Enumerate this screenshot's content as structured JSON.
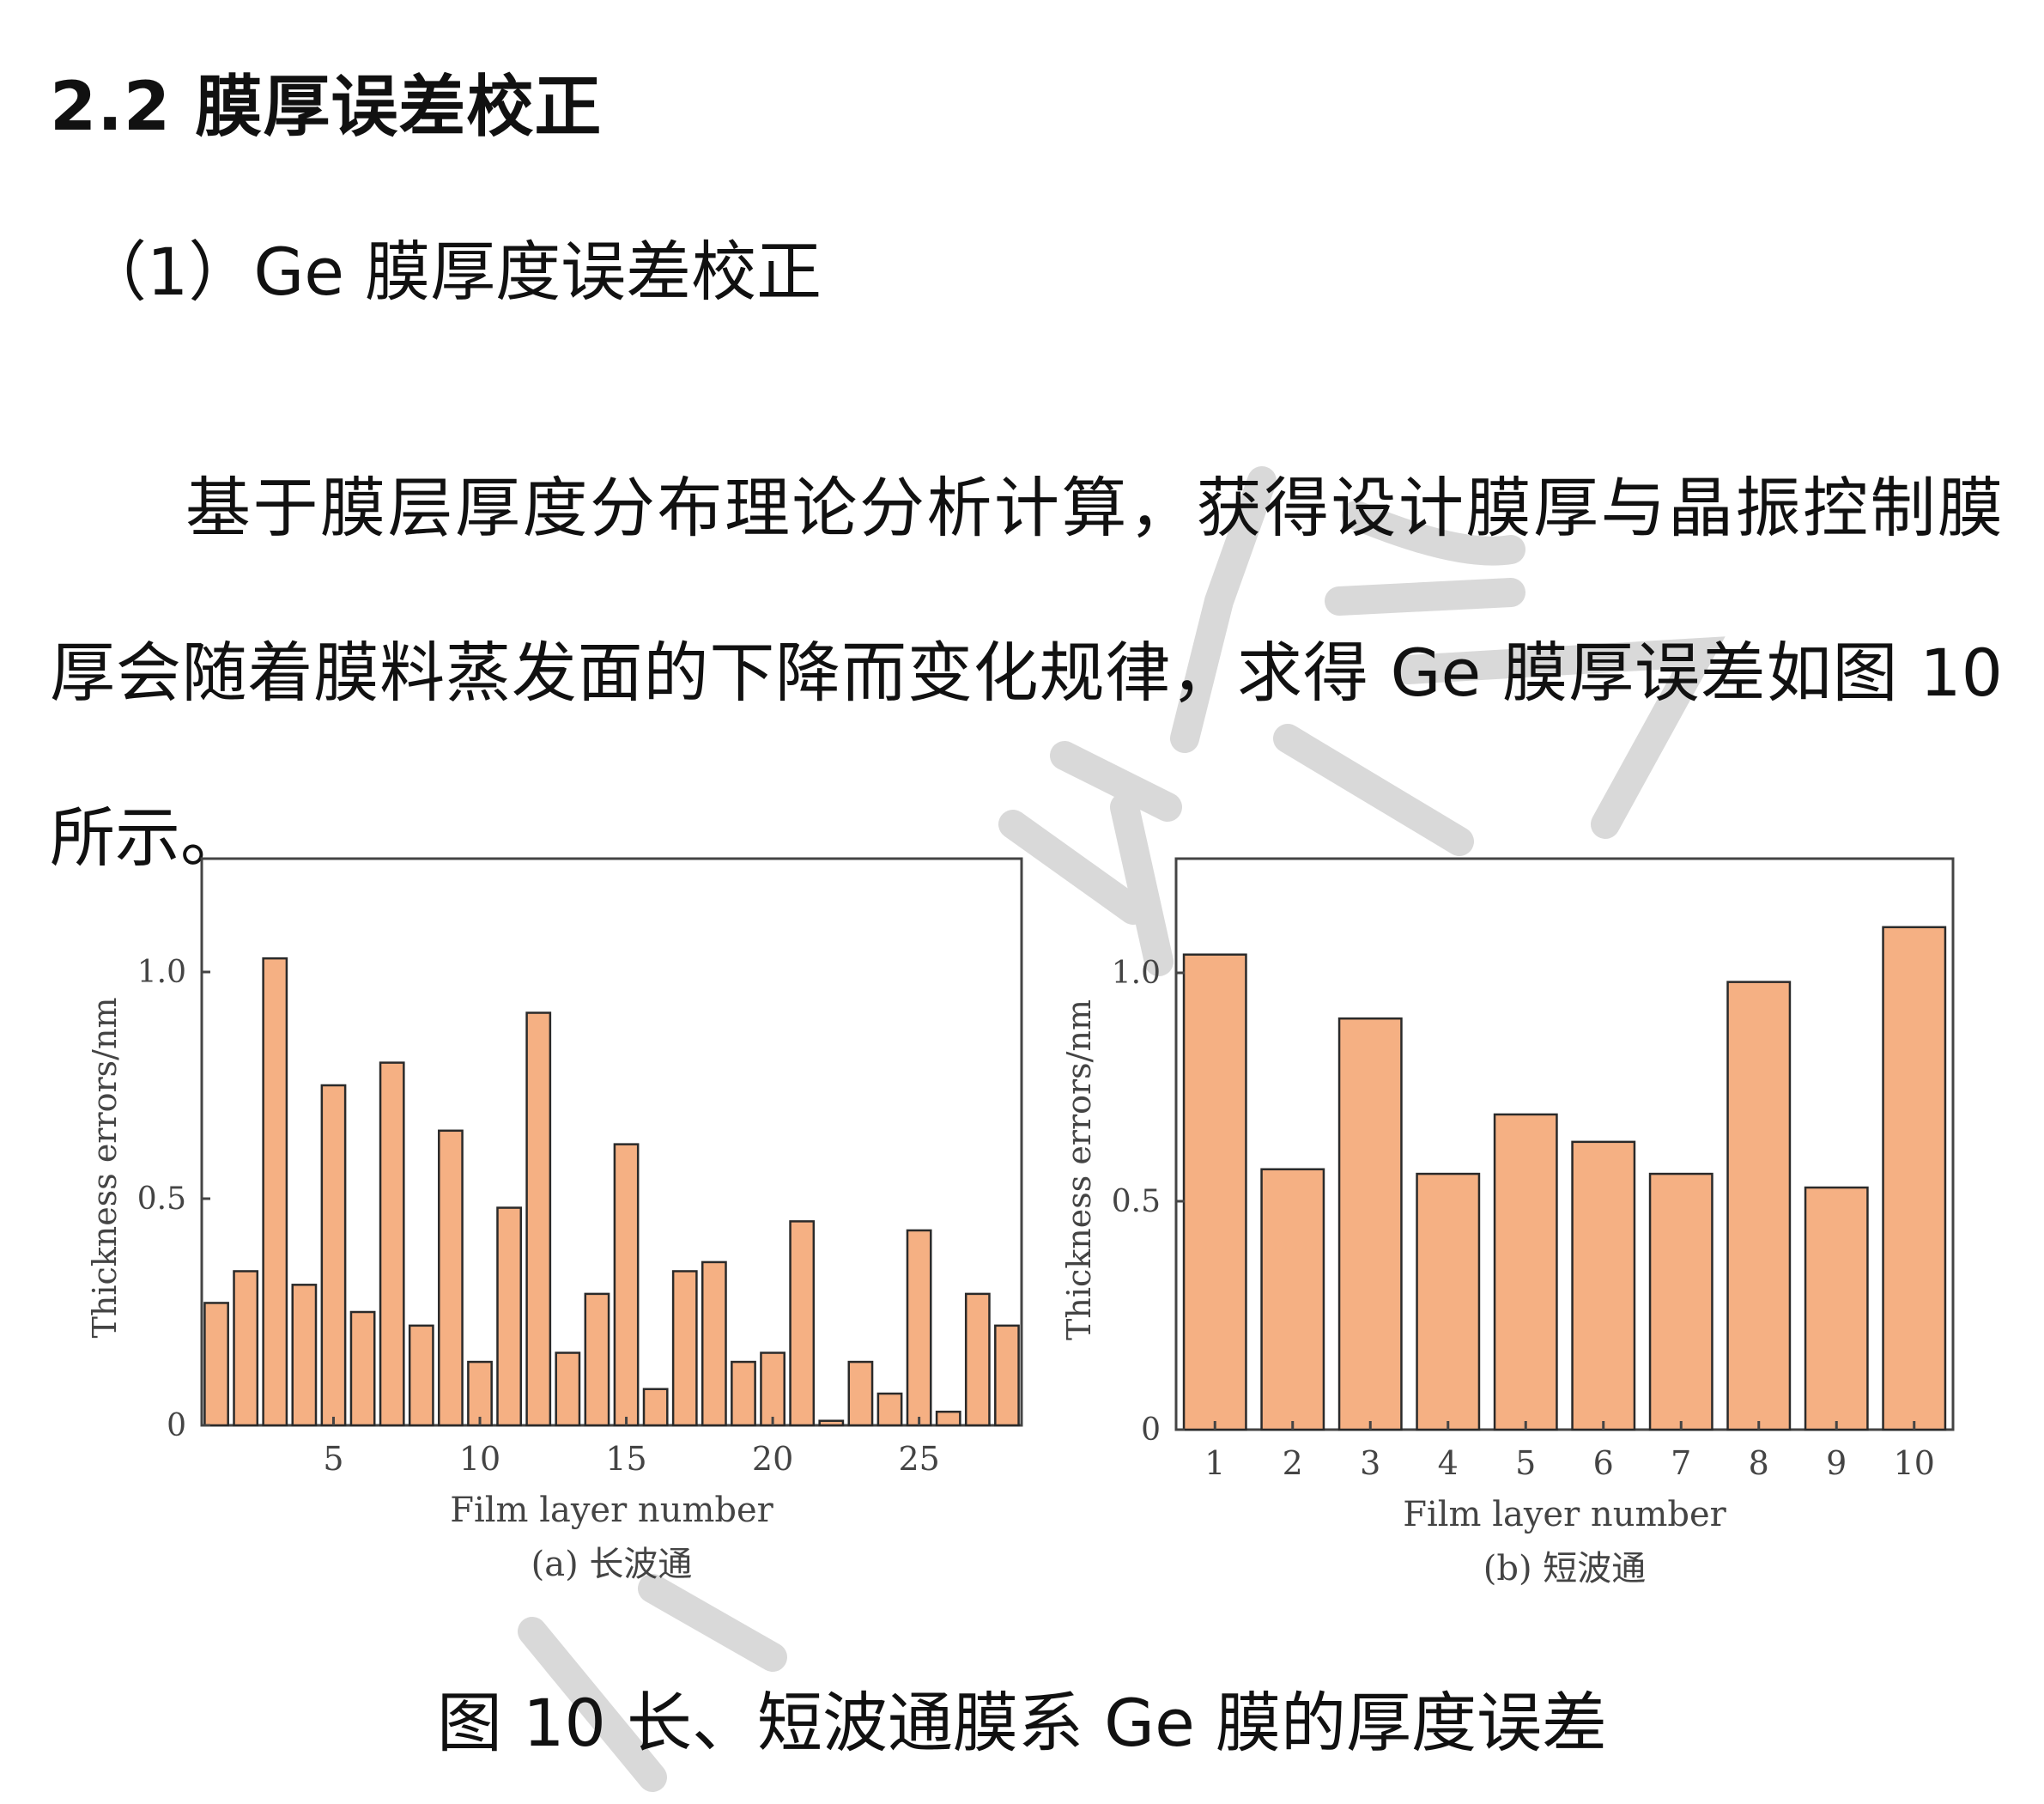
{
  "section": {
    "heading": "2.2  膜厚误差校正",
    "subheading": "（1）Ge 膜厚度误差校正",
    "paragraph": "基于膜层厚度分布理论分析计算，获得设计膜厚与晶振控制膜厚会随着膜料蒸发面的下降而变化规律，求得 Ge 膜厚误差如图 10 所示。"
  },
  "figure": {
    "caption": "图 10  长、短波通膜系 Ge 膜的厚度误差"
  },
  "colors": {
    "bar_fill": "#f5b083",
    "bar_stroke": "#2a2a2a",
    "axis": "#444444",
    "watermark": "#d9d9d9"
  },
  "chart_data": [
    {
      "type": "bar",
      "subcaption": "(a) 长波通",
      "xlabel": "Film layer number",
      "ylabel": "Thickness errors/nm",
      "x_tick_labels": [
        "5",
        "10",
        "15",
        "20",
        "25"
      ],
      "x_tick_values": [
        5,
        10,
        15,
        20,
        25
      ],
      "y_tick_labels": [
        "0",
        "0.5",
        "1.0"
      ],
      "y_tick_values": [
        0,
        0.5,
        1.0
      ],
      "ylim": [
        0,
        1.25
      ],
      "xlim": [
        0.5,
        28.5
      ],
      "grid": false,
      "categories": [
        1,
        2,
        3,
        4,
        5,
        6,
        7,
        8,
        9,
        10,
        11,
        12,
        13,
        14,
        15,
        16,
        17,
        18,
        19,
        20,
        21,
        22,
        23,
        24,
        25,
        26,
        27,
        28
      ],
      "values": [
        0.27,
        0.34,
        1.03,
        0.31,
        0.75,
        0.25,
        0.8,
        0.22,
        0.65,
        0.14,
        0.48,
        0.91,
        0.16,
        0.29,
        0.62,
        0.08,
        0.34,
        0.36,
        0.14,
        0.16,
        0.45,
        0.01,
        0.14,
        0.07,
        0.43,
        0.03,
        0.29,
        0.22
      ]
    },
    {
      "type": "bar",
      "subcaption": "(b) 短波通",
      "xlabel": "Film layer number",
      "ylabel": "Thickness errors/nm",
      "x_tick_labels": [
        "1",
        "2",
        "3",
        "4",
        "5",
        "6",
        "7",
        "8",
        "9",
        "10"
      ],
      "y_tick_labels": [
        "0",
        "0.5",
        "1.0"
      ],
      "y_tick_values": [
        0,
        0.5,
        1.0
      ],
      "ylim": [
        0,
        1.25
      ],
      "grid": false,
      "categories": [
        1,
        2,
        3,
        4,
        5,
        6,
        7,
        8,
        9,
        10
      ],
      "values": [
        1.04,
        0.57,
        0.9,
        0.56,
        0.69,
        0.63,
        0.56,
        0.98,
        0.53,
        1.1
      ]
    }
  ]
}
